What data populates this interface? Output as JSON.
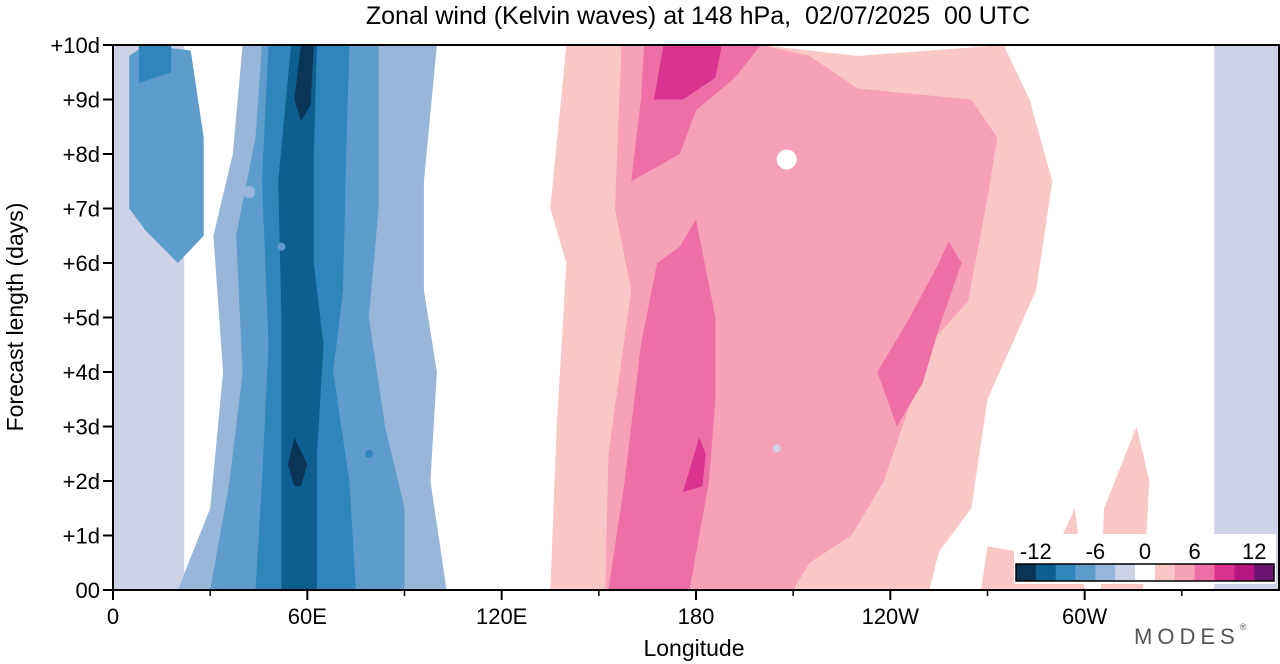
{
  "chart_data": {
    "type": "heatmap",
    "title": "Zonal wind (Kelvin waves) at 148 hPa,  02/07/2025  00 UTC",
    "xlabel": "Longitude",
    "ylabel": "Forecast length (days)",
    "x_ticks": [
      "0",
      "60E",
      "120E",
      "180",
      "120W",
      "60W"
    ],
    "x_tick_values": [
      0,
      60,
      120,
      180,
      240,
      300
    ],
    "x_minor_tick_values": [
      30,
      90,
      150,
      210,
      270,
      330
    ],
    "xlim": [
      0,
      360
    ],
    "y_ticks": [
      "00",
      "+1d",
      "+2d",
      "+3d",
      "+4d",
      "+5d",
      "+6d",
      "+7d",
      "+8d",
      "+9d",
      "+10d"
    ],
    "y_tick_values": [
      0,
      1,
      2,
      3,
      4,
      5,
      6,
      7,
      8,
      9,
      10
    ],
    "ylim": [
      0,
      10
    ],
    "colorbar": {
      "labels": [
        "-12",
        "-6",
        "0",
        "6",
        "12"
      ],
      "label_values": [
        -12,
        -6,
        0,
        6,
        12
      ],
      "bins": [
        -14,
        -12,
        -10,
        -8,
        -6,
        -4,
        -2,
        2,
        4,
        6,
        8,
        10,
        12,
        14
      ],
      "colors": [
        "#0a3556",
        "#0d5f8f",
        "#2e86bd",
        "#5e9dcb",
        "#98b6d9",
        "#cdd2e7",
        "#ffffff",
        "#f9c8c6",
        "#f6a1b7",
        "#ee6fa6",
        "#d9338f",
        "#b5167f",
        "#6a1572"
      ]
    },
    "bands": [
      {
        "value": -8,
        "points": [
          [
            5,
            0
          ],
          [
            5,
            9.8
          ],
          [
            10,
            10
          ],
          [
            24,
            9.9
          ],
          [
            28,
            8.3
          ],
          [
            28,
            6.5
          ],
          [
            20,
            6
          ],
          [
            10,
            6.6
          ],
          [
            5,
            7
          ]
        ]
      },
      {
        "value": -10,
        "points": [
          [
            8,
            9.3
          ],
          [
            8,
            10
          ],
          [
            18,
            10
          ],
          [
            18,
            9.5
          ]
        ]
      },
      {
        "value": -6,
        "points": [
          [
            20,
            0
          ],
          [
            30,
            1.5
          ],
          [
            34,
            4
          ],
          [
            31,
            6.5
          ],
          [
            37,
            8
          ],
          [
            40,
            10
          ],
          [
            100,
            10
          ],
          [
            96,
            7.5
          ],
          [
            96,
            5.5
          ],
          [
            100,
            4
          ],
          [
            98,
            2
          ],
          [
            103,
            0
          ]
        ]
      },
      {
        "value": -8,
        "points": [
          [
            30,
            0
          ],
          [
            36,
            2
          ],
          [
            40,
            4
          ],
          [
            38,
            6.5
          ],
          [
            44,
            8.3
          ],
          [
            46,
            10
          ],
          [
            82,
            10
          ],
          [
            82,
            7
          ],
          [
            79,
            5
          ],
          [
            84,
            3
          ],
          [
            90,
            1.5
          ],
          [
            90,
            0
          ]
        ]
      },
      {
        "value": -10,
        "points": [
          [
            44,
            0
          ],
          [
            46,
            2
          ],
          [
            48,
            4.5
          ],
          [
            46,
            7.5
          ],
          [
            48,
            10
          ],
          [
            73,
            10
          ],
          [
            72,
            8
          ],
          [
            71,
            5.5
          ],
          [
            68,
            4
          ],
          [
            73,
            2
          ],
          [
            75,
            0
          ]
        ]
      },
      {
        "value": -12,
        "points": [
          [
            52,
            0
          ],
          [
            52,
            3
          ],
          [
            52,
            5
          ],
          [
            51,
            7.5
          ],
          [
            55,
            10
          ],
          [
            63,
            10
          ],
          [
            62,
            8
          ],
          [
            62,
            6
          ],
          [
            65,
            4.5
          ],
          [
            63,
            2.5
          ],
          [
            63,
            0
          ]
        ]
      },
      {
        "value": -14,
        "points": [
          [
            56,
            1.9
          ],
          [
            54,
            2.3
          ],
          [
            56,
            2.8
          ],
          [
            60,
            2.3
          ],
          [
            58,
            1.9
          ]
        ]
      },
      {
        "value": -14,
        "points": [
          [
            56,
            9
          ],
          [
            58,
            10
          ],
          [
            62,
            10
          ],
          [
            61,
            8.9
          ],
          [
            58,
            8.6
          ]
        ]
      },
      {
        "value": 2,
        "points": [
          [
            135,
            0
          ],
          [
            137,
            3
          ],
          [
            140,
            6
          ],
          [
            135,
            7
          ],
          [
            140,
            10
          ],
          [
            200,
            10
          ],
          [
            230,
            9.8
          ],
          [
            275,
            10
          ],
          [
            283,
            9
          ],
          [
            290,
            7.5
          ],
          [
            285,
            5.5
          ],
          [
            270,
            3.5
          ],
          [
            265,
            1.5
          ],
          [
            255,
            0.7
          ],
          [
            252,
            0
          ]
        ]
      },
      {
        "value": 2,
        "points": [
          [
            268,
            0
          ],
          [
            270,
            0.8
          ],
          [
            290,
            0.6
          ],
          [
            297,
            1.5
          ],
          [
            300,
            0
          ]
        ]
      },
      {
        "value": 2,
        "points": [
          [
            305,
            0
          ],
          [
            318,
            0
          ],
          [
            320,
            2
          ],
          [
            316,
            3
          ],
          [
            306,
            1.5
          ]
        ]
      },
      {
        "value": 4,
        "points": [
          [
            152,
            0
          ],
          [
            153,
            2.5
          ],
          [
            160,
            5.5
          ],
          [
            155,
            7
          ],
          [
            157,
            10
          ],
          [
            200,
            10
          ],
          [
            215,
            9.8
          ],
          [
            230,
            9.2
          ],
          [
            265,
            9
          ],
          [
            273,
            8.3
          ],
          [
            270,
            7.2
          ],
          [
            264,
            5.3
          ],
          [
            252,
            4.5
          ],
          [
            246,
            3.4
          ],
          [
            238,
            2
          ],
          [
            228,
            1
          ],
          [
            215,
            0.5
          ],
          [
            210,
            0
          ]
        ]
      },
      {
        "value": 6,
        "points": [
          [
            153,
            0
          ],
          [
            158,
            2
          ],
          [
            163,
            4.5
          ],
          [
            168,
            6
          ],
          [
            175,
            6.3
          ],
          [
            180,
            6.8
          ],
          [
            186,
            5
          ],
          [
            186,
            3.5
          ],
          [
            184,
            2
          ],
          [
            178,
            0
          ]
        ]
      },
      {
        "value": 6,
        "points": [
          [
            160,
            7.5
          ],
          [
            163,
            9
          ],
          [
            164,
            10
          ],
          [
            200,
            10
          ],
          [
            192,
            9.4
          ],
          [
            180,
            8.8
          ],
          [
            175,
            8
          ]
        ]
      },
      {
        "value": 6,
        "points": [
          [
            242,
            3
          ],
          [
            236,
            4
          ],
          [
            246,
            5
          ],
          [
            255,
            6
          ],
          [
            258,
            6.4
          ],
          [
            262,
            6
          ],
          [
            255,
            4.8
          ],
          [
            250,
            3.8
          ]
        ]
      },
      {
        "value": 8,
        "points": [
          [
            176,
            1.8
          ],
          [
            178,
            2.2
          ],
          [
            181,
            2.8
          ],
          [
            183,
            2.5
          ],
          [
            182,
            1.9
          ]
        ]
      },
      {
        "value": 8,
        "points": [
          [
            167,
            9
          ],
          [
            170,
            10
          ],
          [
            188,
            10
          ],
          [
            186,
            9.4
          ],
          [
            176,
            9
          ]
        ]
      }
    ],
    "spots": [
      {
        "value": 0,
        "lon": 208,
        "day": 7.9,
        "r": 5
      },
      {
        "value": -4,
        "lon": 205,
        "day": 2.6,
        "r": 2
      },
      {
        "value": -6,
        "lon": 42,
        "day": 7.3,
        "r": 3
      },
      {
        "value": -10,
        "lon": 79,
        "day": 2.5,
        "r": 2
      },
      {
        "value": -8,
        "lon": 52,
        "day": 6.3,
        "r": 2
      }
    ]
  },
  "brand": {
    "name": "MODES",
    "mark": "®"
  },
  "colors": {
    "frame": "#000000",
    "background": "#ffffff"
  }
}
